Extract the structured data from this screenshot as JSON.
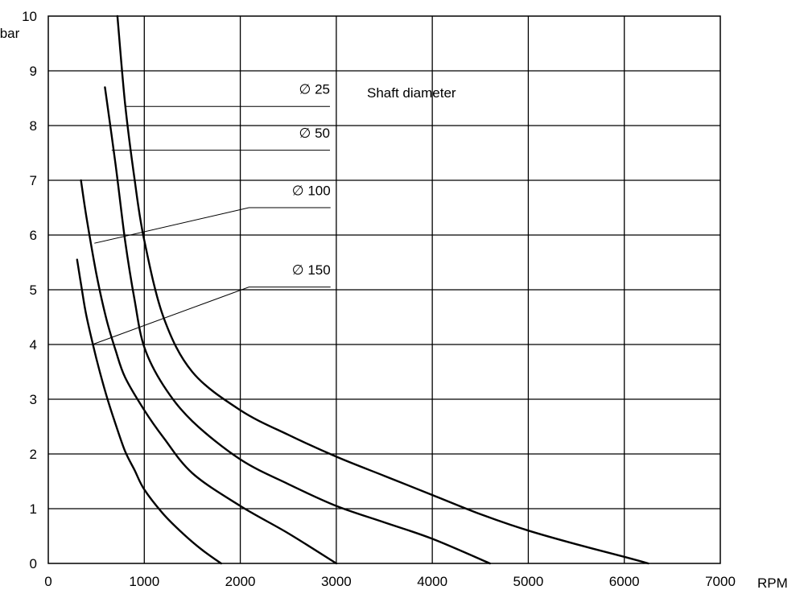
{
  "chart_data": {
    "type": "line",
    "xlabel": "RPM",
    "ylabel": "bar",
    "xlim": [
      0,
      7000
    ],
    "ylim": [
      0,
      10
    ],
    "x_ticks": [
      "0",
      "1000",
      "2000",
      "3000",
      "4000",
      "5000",
      "6000",
      "7000"
    ],
    "y_ticks": [
      "0",
      "1",
      "2",
      "3",
      "4",
      "5",
      "6",
      "7",
      "8",
      "9",
      "10"
    ],
    "grid": true,
    "annotation": "Shaft diameter",
    "series": [
      {
        "name": "∅ 25",
        "points": [
          [
            720,
            10.0
          ],
          [
            800,
            8.4
          ],
          [
            900,
            7.0
          ],
          [
            1000,
            5.9
          ],
          [
            1200,
            4.5
          ],
          [
            1500,
            3.5
          ],
          [
            2000,
            2.8
          ],
          [
            2500,
            2.35
          ],
          [
            3000,
            1.95
          ],
          [
            3500,
            1.6
          ],
          [
            4000,
            1.25
          ],
          [
            4500,
            0.9
          ],
          [
            5000,
            0.6
          ],
          [
            5500,
            0.35
          ],
          [
            6000,
            0.12
          ],
          [
            6250,
            0.0
          ]
        ]
      },
      {
        "name": "∅ 50",
        "points": [
          [
            590,
            8.7
          ],
          [
            700,
            7.3
          ],
          [
            800,
            5.9
          ],
          [
            900,
            4.8
          ],
          [
            1000,
            3.95
          ],
          [
            1200,
            3.25
          ],
          [
            1500,
            2.6
          ],
          [
            2000,
            1.9
          ],
          [
            2500,
            1.45
          ],
          [
            3000,
            1.05
          ],
          [
            3500,
            0.75
          ],
          [
            4000,
            0.45
          ],
          [
            4600,
            0.0
          ]
        ]
      },
      {
        "name": "∅ 100",
        "points": [
          [
            340,
            7.0
          ],
          [
            400,
            6.3
          ],
          [
            500,
            5.3
          ],
          [
            600,
            4.5
          ],
          [
            700,
            3.9
          ],
          [
            800,
            3.4
          ],
          [
            1000,
            2.8
          ],
          [
            1200,
            2.3
          ],
          [
            1500,
            1.65
          ],
          [
            2000,
            1.05
          ],
          [
            2500,
            0.55
          ],
          [
            3000,
            0.0
          ]
        ]
      },
      {
        "name": "∅ 150",
        "points": [
          [
            300,
            5.55
          ],
          [
            350,
            5.0
          ],
          [
            400,
            4.5
          ],
          [
            500,
            3.75
          ],
          [
            600,
            3.1
          ],
          [
            700,
            2.55
          ],
          [
            800,
            2.05
          ],
          [
            900,
            1.7
          ],
          [
            1000,
            1.35
          ],
          [
            1200,
            0.9
          ],
          [
            1400,
            0.55
          ],
          [
            1600,
            0.25
          ],
          [
            1800,
            0.0
          ]
        ]
      }
    ]
  }
}
